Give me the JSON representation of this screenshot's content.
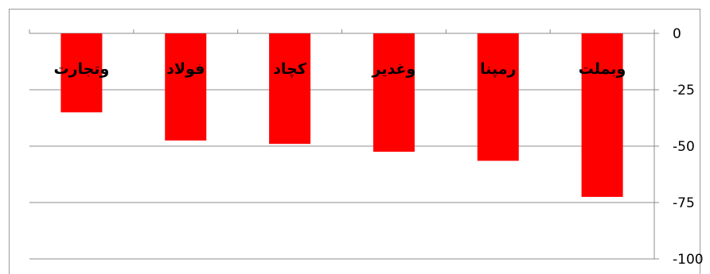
{
  "chart_data": {
    "type": "bar",
    "orientation": "vertical",
    "categories": [
      "وتجارت",
      "فولاد",
      "کچاد",
      "وغدیر",
      "رمپنا",
      "وبملت"
    ],
    "values": [
      -35,
      -47.5,
      -49,
      -52.5,
      -56.5,
      -72.5
    ],
    "ylim": [
      -100,
      0
    ],
    "yticks": [
      0,
      -25,
      -50,
      -75,
      -100
    ],
    "ytick_labels": [
      "0",
      "-25",
      "-50",
      "-75",
      "-100"
    ],
    "y_axis_position": "right",
    "title": "",
    "xlabel": "",
    "ylabel": "",
    "grid": true,
    "legend": "none",
    "bar_color": "#ff0000",
    "grid_color": "#8c8c8c"
  }
}
